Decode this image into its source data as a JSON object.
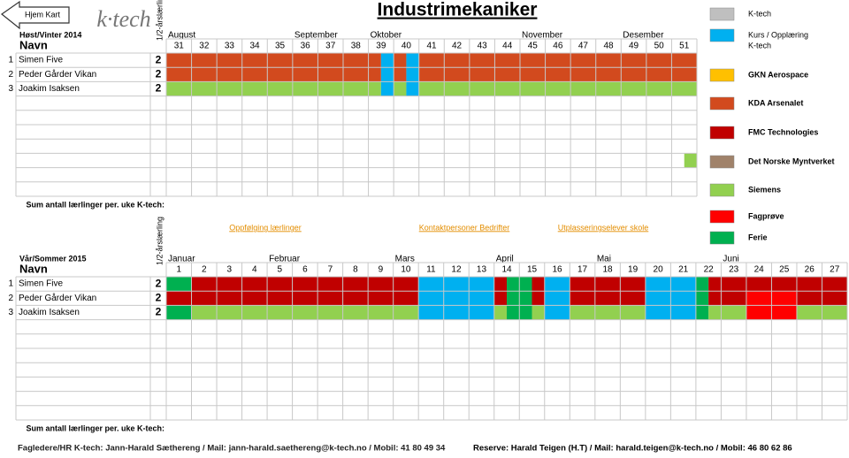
{
  "button": "Hjem Kart",
  "logo": "k·tech",
  "title": "Industrimekaniker",
  "top": {
    "season": "Høst/Vinter 2014",
    "name_header": "Navn",
    "half_header": "1/2-årslærling",
    "months": [
      {
        "label": "August",
        "week": 31
      },
      {
        "label": "September",
        "week": 36
      },
      {
        "label": "Oktober",
        "week": 39
      },
      {
        "label": "November",
        "week": 45
      },
      {
        "label": "Desember",
        "week": 49
      }
    ],
    "weeks": [
      31,
      32,
      33,
      34,
      35,
      36,
      37,
      38,
      39,
      40,
      41,
      42,
      43,
      44,
      45,
      46,
      47,
      48,
      49,
      50,
      51
    ],
    "rows": [
      {
        "no": 1,
        "name": "Simen Five",
        "half": 2,
        "cells": [
          "#d24a1e",
          "#d24a1e",
          "#d24a1e",
          "#d24a1e",
          "#d24a1e",
          "#d24a1e",
          "#d24a1e",
          "#d24a1e",
          [
            "#d24a1e",
            "#00b0f0"
          ],
          [
            "#d24a1e",
            "#00b0f0"
          ],
          "#d24a1e",
          "#d24a1e",
          "#d24a1e",
          "#d24a1e",
          "#d24a1e",
          "#d24a1e",
          "#d24a1e",
          "#d24a1e",
          "#d24a1e",
          "#d24a1e",
          "#d24a1e"
        ]
      },
      {
        "no": 2,
        "name": "Peder Gårder Vikan",
        "half": 2,
        "cells": [
          "#d24a1e",
          "#d24a1e",
          "#d24a1e",
          "#d24a1e",
          "#d24a1e",
          "#d24a1e",
          "#d24a1e",
          "#d24a1e",
          [
            "#d24a1e",
            "#00b0f0"
          ],
          [
            "#d24a1e",
            "#00b0f0"
          ],
          "#d24a1e",
          "#d24a1e",
          "#d24a1e",
          "#d24a1e",
          "#d24a1e",
          "#d24a1e",
          "#d24a1e",
          "#d24a1e",
          "#d24a1e",
          "#d24a1e",
          "#d24a1e"
        ]
      },
      {
        "no": 3,
        "name": "Joakim Isaksen",
        "half": 2,
        "cells": [
          "#92d050",
          "#92d050",
          "#92d050",
          "#92d050",
          "#92d050",
          "#92d050",
          "#92d050",
          "#92d050",
          [
            "#92d050",
            "#00b0f0"
          ],
          [
            "#92d050",
            "#00b0f0"
          ],
          "#92d050",
          "#92d050",
          "#92d050",
          "#92d050",
          "#92d050",
          "#92d050",
          "#92d050",
          "#92d050",
          "#92d050",
          "#92d050",
          "#92d050"
        ]
      },
      {},
      {},
      {},
      {},
      {
        "cells": [
          null,
          null,
          null,
          null,
          null,
          null,
          null,
          null,
          null,
          null,
          null,
          null,
          null,
          null,
          null,
          null,
          null,
          null,
          null,
          null,
          [
            null,
            "#92d050"
          ]
        ]
      },
      {},
      {}
    ],
    "sum_label": "Sum antall lærlinger per. uke K-tech:"
  },
  "links": [
    "Oppfølging lærlinger",
    "Kontaktpersoner Bedrifter",
    "Utplasseringselever skole"
  ],
  "bottom": {
    "season": "Vår/Sommer 2015",
    "name_header": "Navn",
    "half_header": "1/2-årslærling",
    "months": [
      {
        "label": "Januar",
        "week": 1
      },
      {
        "label": "Februar",
        "week": 5
      },
      {
        "label": "Mars",
        "week": 10
      },
      {
        "label": "April",
        "week": 14
      },
      {
        "label": "Mai",
        "week": 18
      },
      {
        "label": "Juni",
        "week": 23
      }
    ],
    "weeks": [
      1,
      2,
      3,
      4,
      5,
      6,
      7,
      8,
      9,
      10,
      11,
      12,
      13,
      14,
      15,
      16,
      17,
      18,
      19,
      20,
      21,
      22,
      23,
      24,
      25,
      26,
      27
    ],
    "rows": [
      {
        "no": 1,
        "name": "Simen Five",
        "half": 2,
        "cells": [
          "#00b050",
          "#c00000",
          "#c00000",
          "#c00000",
          "#c00000",
          "#c00000",
          "#c00000",
          "#c00000",
          "#c00000",
          "#c00000",
          "#00b0f0",
          "#00b0f0",
          "#00b0f0",
          [
            "#c00000",
            "#00b050"
          ],
          [
            "#00b050",
            "#c00000"
          ],
          "#00b0f0",
          "#c00000",
          "#c00000",
          "#c00000",
          "#00b0f0",
          "#00b0f0",
          [
            "#00b050",
            "#c00000"
          ],
          "#c00000",
          "#c00000",
          "#c00000",
          "#c00000",
          "#c00000"
        ]
      },
      {
        "no": 2,
        "name": "Peder Gårder Vikan",
        "half": 2,
        "cells": [
          "#c00000",
          "#c00000",
          "#c00000",
          "#c00000",
          "#c00000",
          "#c00000",
          "#c00000",
          "#c00000",
          "#c00000",
          "#c00000",
          "#00b0f0",
          "#00b0f0",
          "#00b0f0",
          [
            "#c00000",
            "#00b050"
          ],
          [
            "#00b050",
            "#c00000"
          ],
          "#00b0f0",
          "#c00000",
          "#c00000",
          "#c00000",
          "#00b0f0",
          "#00b0f0",
          [
            "#00b050",
            "#c00000"
          ],
          "#c00000",
          "#ff0000",
          "#ff0000",
          "#c00000",
          "#c00000"
        ]
      },
      {
        "no": 3,
        "name": "Joakim Isaksen",
        "half": 2,
        "cells": [
          "#00b050",
          "#92d050",
          "#92d050",
          "#92d050",
          "#92d050",
          "#92d050",
          "#92d050",
          "#92d050",
          "#92d050",
          "#92d050",
          "#00b0f0",
          "#00b0f0",
          "#00b0f0",
          [
            "#92d050",
            "#00b050"
          ],
          [
            "#00b050",
            "#92d050"
          ],
          "#00b0f0",
          "#92d050",
          "#92d050",
          "#92d050",
          "#00b0f0",
          "#00b0f0",
          [
            "#00b050",
            "#92d050"
          ],
          "#92d050",
          "#ff0000",
          "#ff0000",
          "#92d050",
          "#92d050"
        ]
      },
      {},
      {},
      {},
      {},
      {},
      {},
      {}
    ],
    "sum_label": "Sum antall lærlinger per. uke K-tech:"
  },
  "legend": [
    {
      "label": [
        "K-tech"
      ],
      "color": "#bfbfbf"
    },
    {
      "label": [
        "Kurs / Opplæring",
        "K-tech"
      ],
      "color": "#00b0f0"
    },
    {
      "label": [
        "GKN Aerospace"
      ],
      "color": "#ffc000"
    },
    {
      "label": [
        "KDA Arsenalet"
      ],
      "color": "#d24a1e"
    },
    {
      "label": [
        "FMC Technologies"
      ],
      "color": "#c00000"
    },
    {
      "label": [
        "Det Norske Myntverket"
      ],
      "color": "#a0826a"
    },
    {
      "label": [
        "Siemens"
      ],
      "color": "#92d050"
    },
    {
      "label": [
        "Fagprøve"
      ],
      "color": "#ff0000"
    },
    {
      "label": [
        "Ferie"
      ],
      "color": "#00b050"
    }
  ],
  "footer": [
    "Fagledere/HR K-tech: Jann-Harald Sæthereng / Mail: jann-harald.saethereng@k-tech.no / Mobil: 41 80 49 34",
    "Reserve: Harald Teigen (H.T) / Mail: harald.teigen@k-tech.no / Mobil: 46 80 62 86"
  ]
}
